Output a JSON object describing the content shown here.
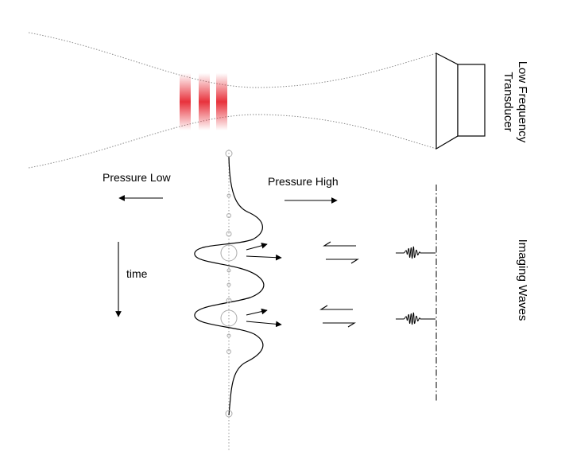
{
  "labels": {
    "transducer_line1": "Low Frequency",
    "transducer_line2": "Transducer",
    "imaging_waves": "Imaging Waves",
    "pressure_low": "Pressure Low",
    "pressure_high": "Pressure High",
    "time": "time"
  },
  "colors": {
    "ink": "#000000",
    "guide": "#9a9a9a",
    "focus": "#e8323c"
  }
}
